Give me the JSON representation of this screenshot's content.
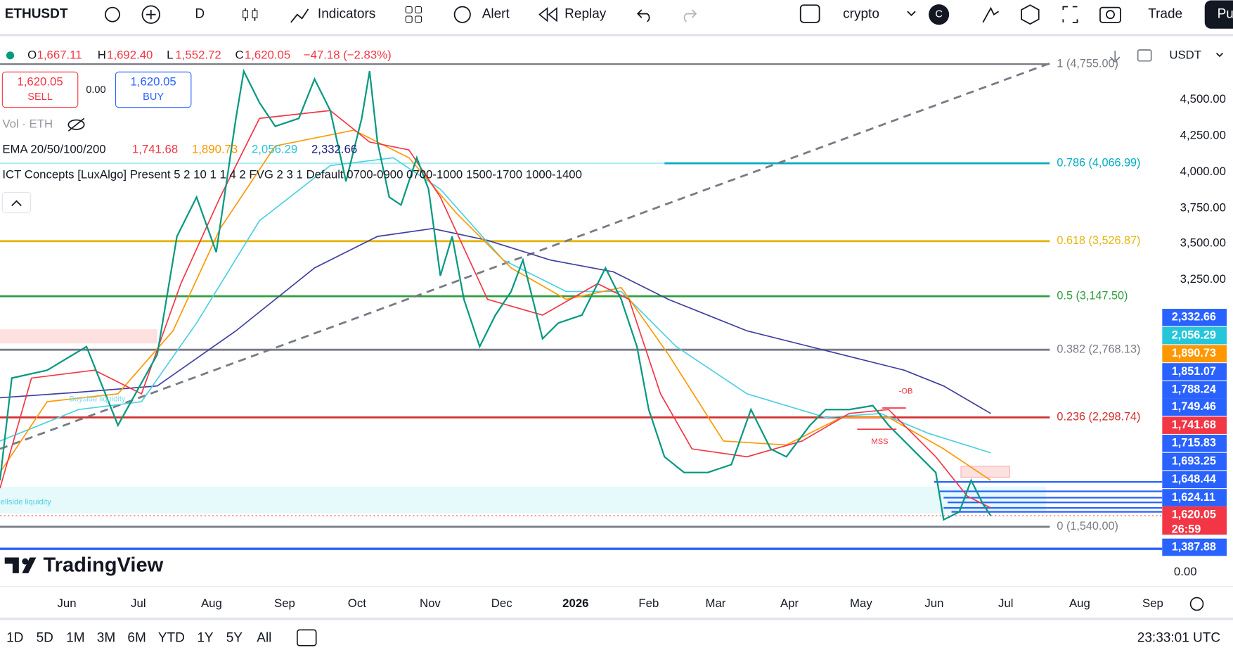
{
  "toolbar": {
    "symbol": "ETHUSDT",
    "interval": "D",
    "indicators": "Indicators",
    "alert": "Alert",
    "replay": "Replay",
    "layout": "crypto",
    "avatar": "C",
    "trade": "Trade",
    "publish": "Pu"
  },
  "legend": {
    "o_label": "O",
    "o": "1,667.11",
    "h_label": "H",
    "h": "1,692.40",
    "l_label": "L",
    "l": "1,552.72",
    "c_label": "C",
    "c": "1,620.05",
    "change": "−47.18 (−2.83%)",
    "sell_price": "1,620.05",
    "sell": "SELL",
    "spread": "0.00",
    "buy_price": "1,620.05",
    "buy": "BUY",
    "volume": "Vol · ETH",
    "ema": "EMA 20/50/100/200",
    "ema20": "1,741.68",
    "ema50": "1,890.73",
    "ema100": "2,056.29",
    "ema200": "2,332.66",
    "ict": "ICT Concepts [LuxAlgo] Present 5 2 10 1 1 4 2 FVG 2 3 1 Default 0700-0900 0700-1000 1500-1700 1000-1400"
  },
  "fib_levels": [
    "1 (4,755.00)",
    "0.786 (4,066.99)",
    "0.618 (3,526.87)",
    "0.5 (3,147.50)",
    "0.382 (2,768.13)",
    "0.236 (2,298.74)",
    "0 (1,540.00)"
  ],
  "annotations": {
    "ob": "-OB",
    "mss": "MSS",
    "buyside": "Buyside liquidity",
    "sellside": "Sellside liquidity"
  },
  "logo": "TradingView",
  "price_axis": {
    "currency": "USDT",
    "ticks": [
      "4,500.00",
      "4,250.00",
      "4,000.00",
      "3,750.00",
      "3,500.00",
      "3,250.00",
      "0.00"
    ],
    "tags": [
      "2,332.66",
      "2,056.29",
      "1,890.73",
      "1,851.07",
      "1,788.24",
      "1,749.46",
      "1,741.68",
      "1,715.83",
      "1,693.25",
      "1,648.44",
      "1,624.11",
      "1,620.05",
      "1,387.88"
    ],
    "countdown": "26:59"
  },
  "time_axis": [
    "Jun",
    "Jul",
    "Aug",
    "Sep",
    "Oct",
    "Nov",
    "Dec",
    "2026",
    "Feb",
    "Mar",
    "Apr",
    "May",
    "Jun",
    "Jul",
    "Aug",
    "Sep"
  ],
  "bottom_bar": {
    "ranges": [
      "1D",
      "5D",
      "1M",
      "3M",
      "6M",
      "YTD",
      "1Y",
      "5Y",
      "All"
    ],
    "clock": "23:33:01 UTC"
  }
}
